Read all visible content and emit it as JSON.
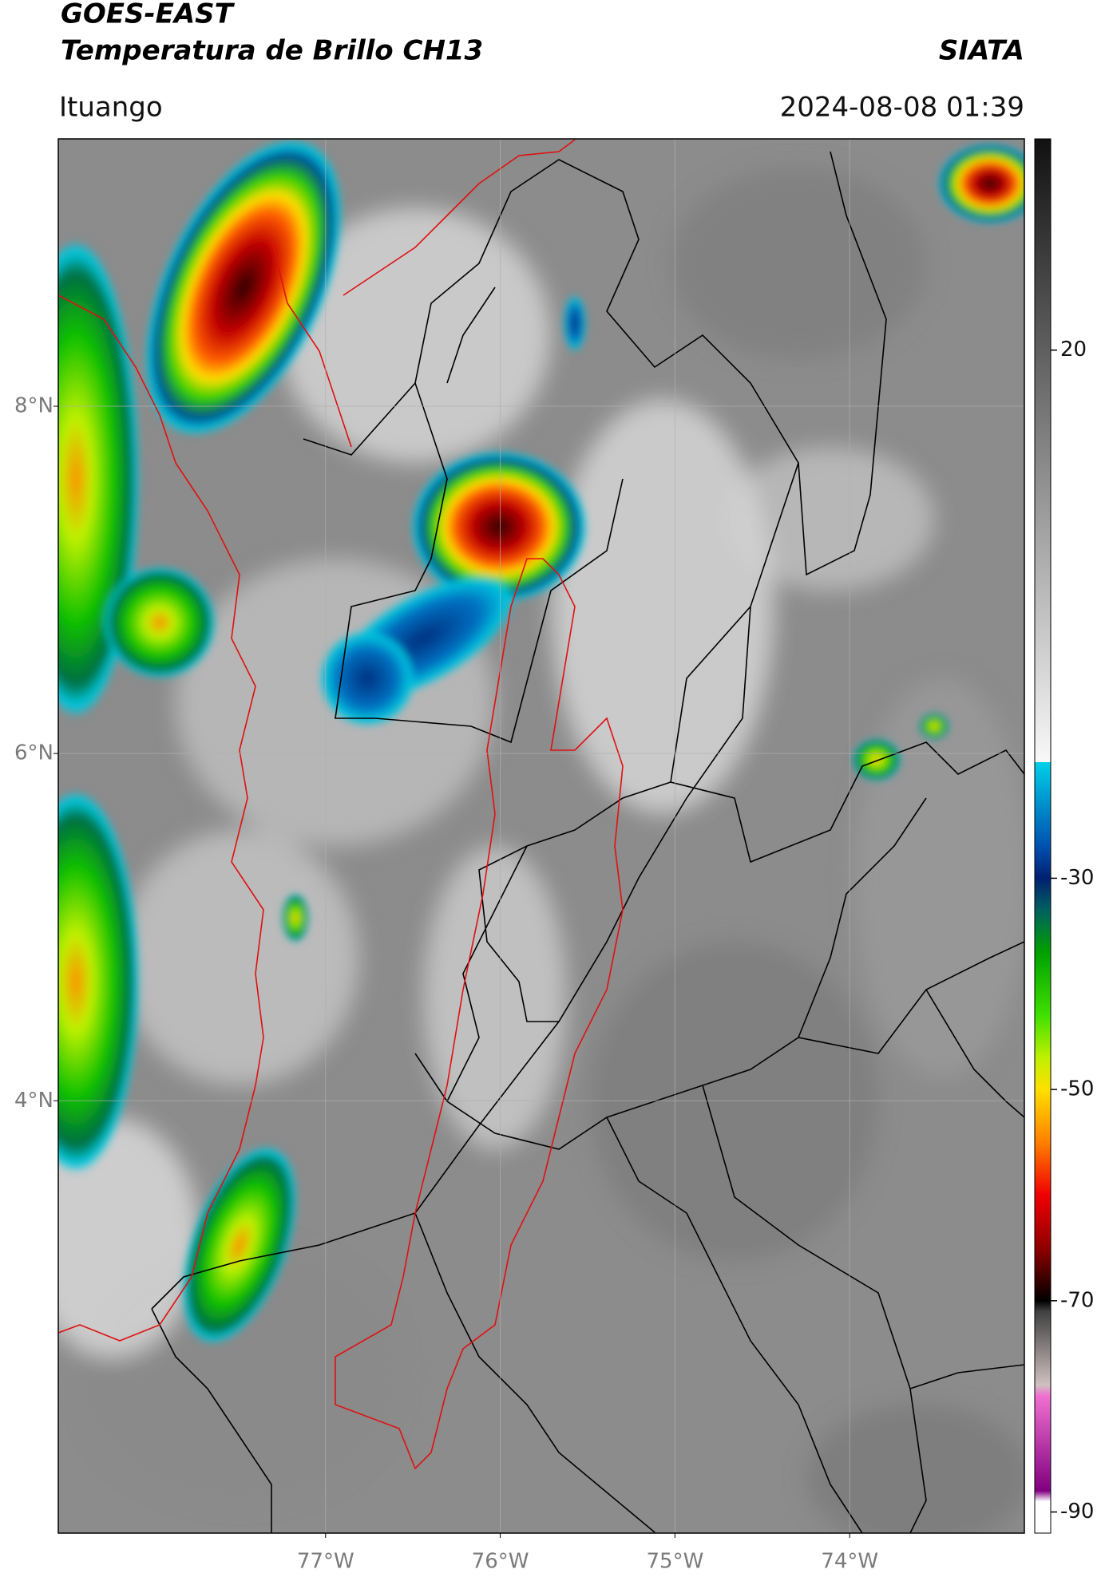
{
  "chart_data": {
    "type": "map",
    "title": "GOES-EAST",
    "subtitle": "Temperatura de Brillo CH13",
    "source": "SIATA",
    "location": "Ituango",
    "timestamp": "2024-08-08 01:39",
    "xlim": [
      -78.53,
      -73.0
    ],
    "ylim": [
      1.51,
      9.54
    ],
    "xticks": [
      {
        "value": -77,
        "label": "77°W"
      },
      {
        "value": -76,
        "label": "76°W"
      },
      {
        "value": -75,
        "label": "75°W"
      },
      {
        "value": -74,
        "label": "74°W"
      }
    ],
    "yticks": [
      {
        "value": 8,
        "label": "8°N"
      },
      {
        "value": 6,
        "label": "6°N"
      },
      {
        "value": 4,
        "label": "4°N"
      }
    ],
    "grid": true,
    "colorbar": {
      "ylim": [
        -92,
        40
      ],
      "yticks": [
        20,
        -30,
        -50,
        -70,
        -90
      ],
      "colormap": [
        {
          "value": 40,
          "color": "#111111"
        },
        {
          "value": -19,
          "color": "#f8f8f8"
        },
        {
          "value": -19,
          "color": "#00d0e8"
        },
        {
          "value": -27,
          "color": "#0050b0"
        },
        {
          "value": -30,
          "color": "#002070"
        },
        {
          "value": -33,
          "color": "#006060"
        },
        {
          "value": -37,
          "color": "#00a000"
        },
        {
          "value": -43,
          "color": "#40e000"
        },
        {
          "value": -47,
          "color": "#c0f000"
        },
        {
          "value": -50,
          "color": "#ffe000"
        },
        {
          "value": -55,
          "color": "#ff8000"
        },
        {
          "value": -60,
          "color": "#f00000"
        },
        {
          "value": -65,
          "color": "#900000"
        },
        {
          "value": -70,
          "color": "#000000"
        },
        {
          "value": -71,
          "color": "#404040"
        },
        {
          "value": -78,
          "color": "#d0c0c0"
        },
        {
          "value": -79,
          "color": "#f070d0"
        },
        {
          "value": -88,
          "color": "#800080"
        },
        {
          "value": -89,
          "color": "#ffffff"
        },
        {
          "value": -92,
          "color": "#ffffff"
        }
      ]
    }
  }
}
